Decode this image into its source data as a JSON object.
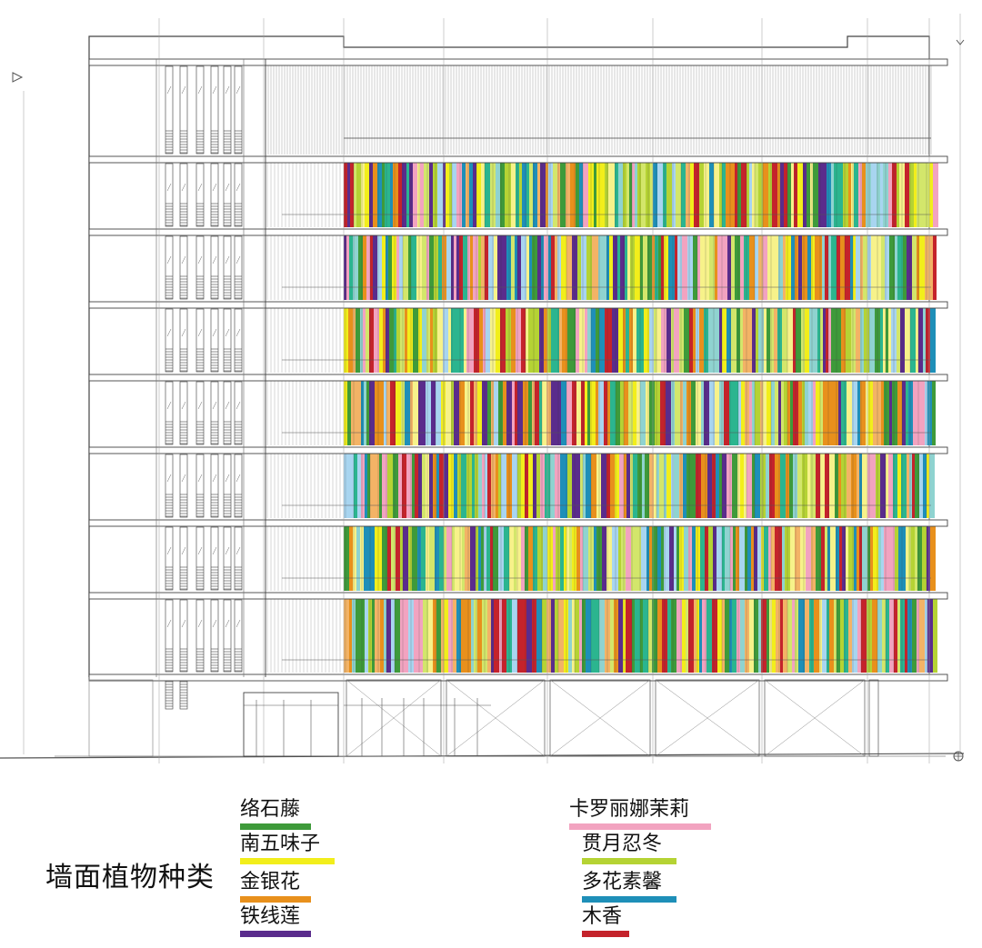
{
  "legend": {
    "title": "墙面植物种类",
    "items": [
      {
        "label": "络石藤",
        "color": "#3e9a3a"
      },
      {
        "label": "南五味子",
        "color": "#f2ee1b"
      },
      {
        "label": "金银花",
        "color": "#e8901c"
      },
      {
        "label": "铁线莲",
        "color": "#5a2c8c"
      },
      {
        "label": "卡罗丽娜茉莉",
        "color": "#f2a3c0"
      },
      {
        "label": "贯月忍冬",
        "color": "#b5d334"
      },
      {
        "label": "多花素馨",
        "color": "#1e8fb8"
      },
      {
        "label": "木香",
        "color": "#c4232b"
      }
    ]
  },
  "facade_palette": [
    "#3e9a3a",
    "#f2ee1b",
    "#e8901c",
    "#5a2c8c",
    "#f2a3c0",
    "#b5d334",
    "#1e8fb8",
    "#c4232b",
    "#8fd3d0",
    "#a8d5f0",
    "#f7f28a",
    "#f3b366",
    "#d3e66b",
    "#2bb58f"
  ]
}
